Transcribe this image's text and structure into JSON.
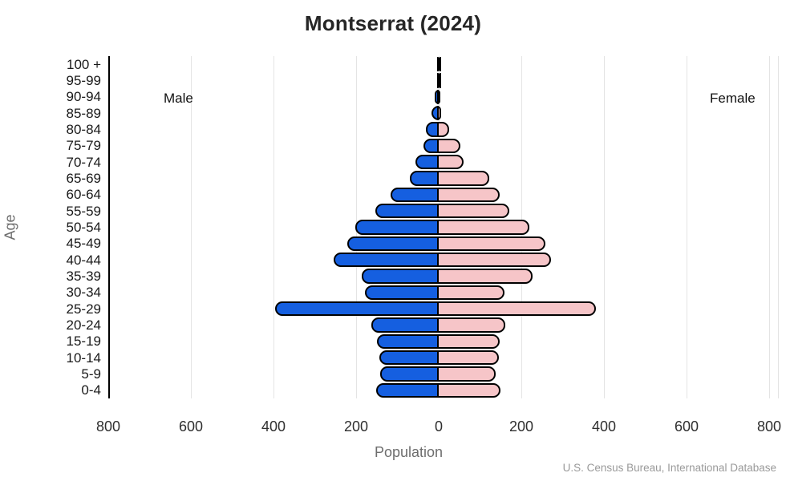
{
  "title": "Montserrat (2024)",
  "side_labels": {
    "male": "Male",
    "female": "Female"
  },
  "axes": {
    "y_label": "Age",
    "x_label": "Population",
    "x_tick_labels": [
      "800",
      "600",
      "400",
      "200",
      "0",
      "200",
      "400",
      "600",
      "800"
    ],
    "x_max_each_side": 800
  },
  "source": "U.S. Census Bureau, International Database",
  "colors": {
    "male_fill": "#155fe0",
    "female_fill": "#f6c5c8",
    "bar_outline": "#000000",
    "gridline": "#e4e4e4"
  },
  "chart_data": {
    "type": "bar",
    "subtype": "population-pyramid",
    "title": "Montserrat (2024)",
    "xlabel": "Population",
    "ylabel": "Age",
    "x_range_each_side": [
      0,
      800
    ],
    "grid": true,
    "categories_top_to_bottom": [
      "100 +",
      "95-99",
      "90-94",
      "85-89",
      "80-84",
      "75-79",
      "70-74",
      "65-69",
      "60-64",
      "55-59",
      "50-54",
      "45-49",
      "40-44",
      "35-39",
      "30-34",
      "25-29",
      "20-24",
      "15-19",
      "10-14",
      "5-9",
      "0-4"
    ],
    "series": [
      {
        "name": "Male",
        "side": "left",
        "values": [
          2,
          1,
          10,
          18,
          32,
          36,
          57,
          70,
          116,
          153,
          201,
          221,
          254,
          187,
          178,
          397,
          164,
          150,
          144,
          142,
          151
        ]
      },
      {
        "name": "Female",
        "side": "right",
        "values": [
          1,
          1,
          3,
          5,
          25,
          52,
          61,
          122,
          148,
          171,
          219,
          258,
          271,
          227,
          160,
          381,
          161,
          147,
          145,
          138,
          150
        ]
      }
    ]
  }
}
